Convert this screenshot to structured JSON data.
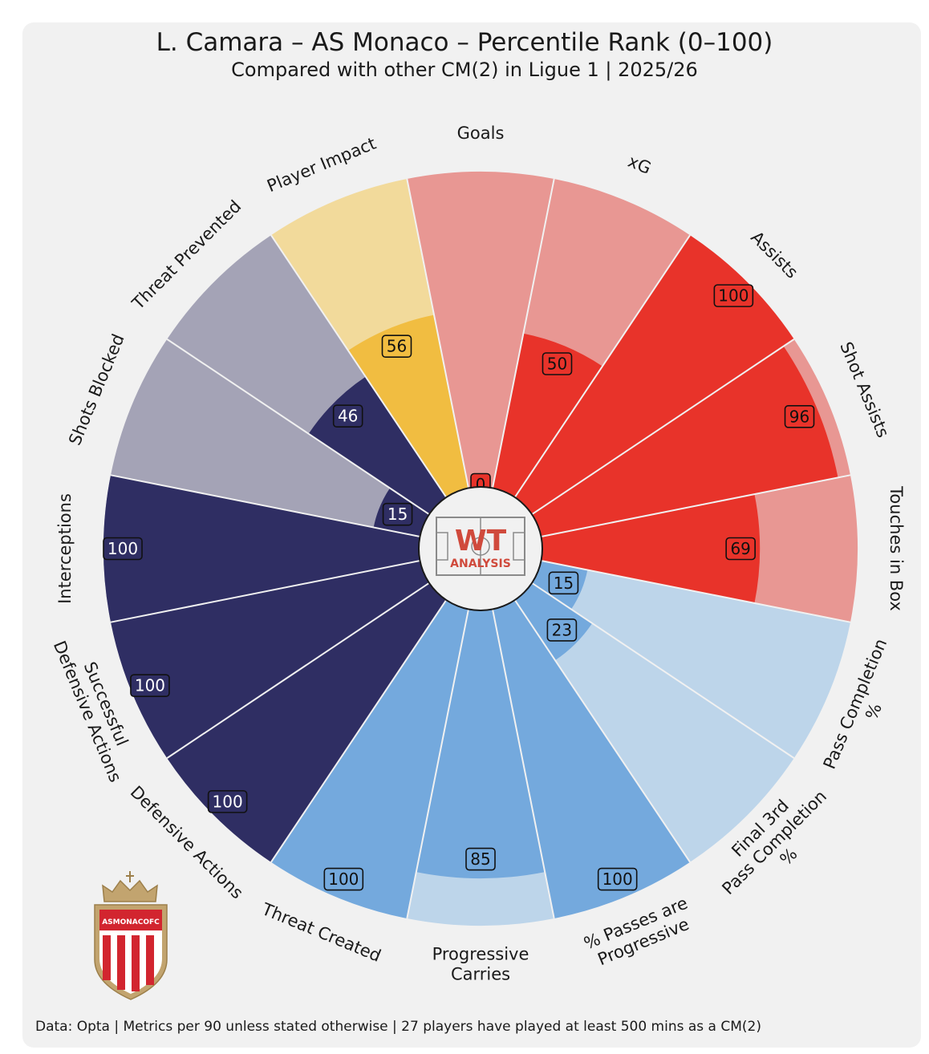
{
  "title": "L. Camara – AS Monaco – Percentile Rank (0–100)",
  "subtitle": "Compared with other CM(2) in Ligue 1 | 2025/26",
  "footer": "Data: Opta | Metrics per 90 unless stated otherwise | 27 players have played at least 500 mins as a CM(2)",
  "logo": {
    "line1": "WT",
    "line2": "ANALYSIS"
  },
  "crest": {
    "text": "ASMONACOFC"
  },
  "colors": {
    "attacking": "#e8332a",
    "attacking_bg": "#e89793",
    "possession": "#74a9dd",
    "possession_bg": "#bdd5ea",
    "defending": "#2f2e63",
    "defending_bg": "#a4a3b6",
    "impact": "#f1bd41",
    "impact_bg": "#f2da9b",
    "background": "#f1f1f1",
    "logo_red": "#d04a3c"
  },
  "chart_data": {
    "type": "radial_bar",
    "title": "L. Camara – AS Monaco – Percentile Rank (0–100)",
    "range": [
      0,
      100
    ],
    "metrics": [
      {
        "label": [
          "Goals"
        ],
        "value": 0,
        "group": "attacking"
      },
      {
        "label": [
          "xG"
        ],
        "value": 50,
        "group": "attacking"
      },
      {
        "label": [
          "Assists"
        ],
        "value": 100,
        "group": "attacking"
      },
      {
        "label": [
          "Shot Assists"
        ],
        "value": 96,
        "group": "attacking"
      },
      {
        "label": [
          "Touches in Box"
        ],
        "value": 69,
        "group": "attacking"
      },
      {
        "label": [
          "Pass Completion",
          "%"
        ],
        "value": 15,
        "group": "possession"
      },
      {
        "label": [
          "Final 3rd",
          "Pass Completion",
          "%"
        ],
        "value": 23,
        "group": "possession"
      },
      {
        "label": [
          "% Passes are",
          "Progressive"
        ],
        "value": 100,
        "group": "possession"
      },
      {
        "label": [
          "Progressive",
          "Carries"
        ],
        "value": 85,
        "group": "possession"
      },
      {
        "label": [
          "Threat Created"
        ],
        "value": 100,
        "group": "possession"
      },
      {
        "label": [
          "Defensive Actions"
        ],
        "value": 100,
        "group": "defending"
      },
      {
        "label": [
          "Successful",
          "Defensive Actions"
        ],
        "value": 100,
        "group": "defending"
      },
      {
        "label": [
          "Interceptions"
        ],
        "value": 100,
        "group": "defending"
      },
      {
        "label": [
          "Shots Blocked"
        ],
        "value": 15,
        "group": "defending"
      },
      {
        "label": [
          "Threat Prevented"
        ],
        "value": 46,
        "group": "defending"
      },
      {
        "label": [
          "Player Impact"
        ],
        "value": 56,
        "group": "impact"
      }
    ]
  }
}
